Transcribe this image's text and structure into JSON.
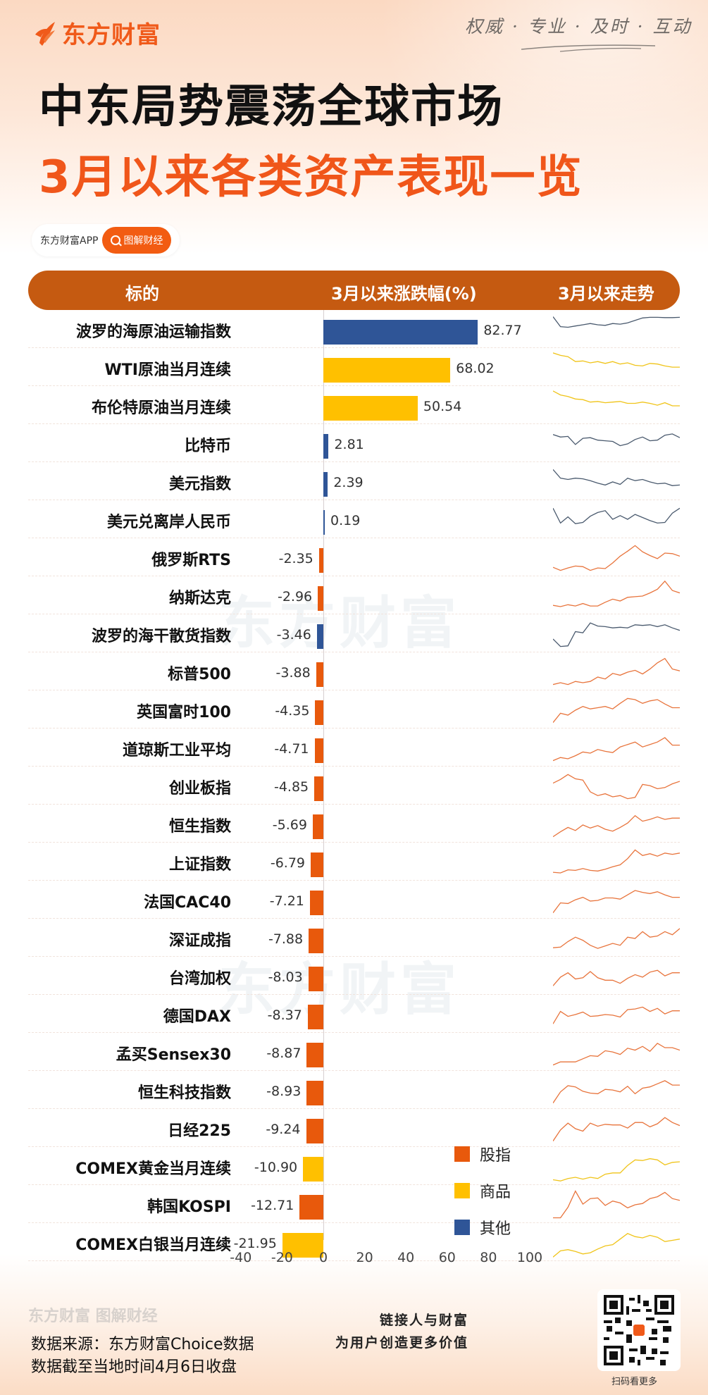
{
  "brand": {
    "logo_text": "东方财富",
    "slogan": "权威 · 专业 · 及时 · 互动"
  },
  "titles": {
    "line1": "中东局势震荡全球市场",
    "line2": "3月以来各类资产表现一览"
  },
  "app_pill": {
    "app_name": "东方财富APP",
    "tag_label": "图解财经"
  },
  "table_header": {
    "col_name": "标的",
    "col_change": "3月以来涨跌幅(%)",
    "col_trend": "3月以来走势"
  },
  "colors": {
    "stock_index": "#E8590C",
    "commodity": "#FFC000",
    "other": "#2F5597",
    "header_bar": "#C55A11",
    "title_accent": "#F0561A"
  },
  "legend": [
    {
      "label": "股指",
      "category": "stock_index"
    },
    {
      "label": "商品",
      "category": "commodity"
    },
    {
      "label": "其他",
      "category": "other"
    }
  ],
  "chart_data": {
    "type": "bar",
    "orientation": "horizontal",
    "title": "3月以来各类资产表现一览",
    "xlabel": "3月以来涨跌幅(%)",
    "ylabel": "标的",
    "xlim": [
      -40,
      100
    ],
    "xticks": [
      "-40",
      "-20",
      "0",
      "20",
      "40",
      "60",
      "80",
      "100"
    ],
    "grid": false,
    "legend_position": "lower right inside",
    "categories": [
      "波罗的海原油运输指数",
      "WTI原油当月连续",
      "布伦特原油当月连续",
      "比特币",
      "美元指数",
      "美元兑离岸人民币",
      "俄罗斯RTS",
      "纳斯达克",
      "波罗的海干散货指数",
      "标普500",
      "英国富时100",
      "道琼斯工业平均",
      "创业板指",
      "恒生指数",
      "上证指数",
      "法国CAC40",
      "深证成指",
      "台湾加权",
      "德国DAX",
      "孟买Sensex30",
      "恒生科技指数",
      "日经225",
      "COMEX黄金当月连续",
      "韩国KOSPI",
      "COMEX白银当月连续"
    ],
    "values": [
      82.77,
      68.02,
      50.54,
      2.81,
      2.39,
      0.19,
      -2.35,
      -2.96,
      -3.46,
      -3.88,
      -4.35,
      -4.71,
      -4.85,
      -5.69,
      -6.79,
      -7.21,
      -7.88,
      -8.03,
      -8.37,
      -8.87,
      -8.93,
      -9.24,
      -10.9,
      -12.71,
      -21.95
    ],
    "value_labels": [
      "82.77",
      "68.02",
      "50.54",
      "2.81",
      "2.39",
      "0.19",
      "-2.35",
      "-2.96",
      "-3.46",
      "-3.88",
      "-4.35",
      "-4.71",
      "-4.85",
      "-5.69",
      "-6.79",
      "-7.21",
      "-7.88",
      "-8.03",
      "-8.37",
      "-8.87",
      "-8.93",
      "-9.24",
      "-10.90",
      "-12.71",
      "-21.95"
    ],
    "asset_class": [
      "other",
      "commodity",
      "commodity",
      "other",
      "other",
      "other",
      "stock_index",
      "stock_index",
      "other",
      "stock_index",
      "stock_index",
      "stock_index",
      "stock_index",
      "stock_index",
      "stock_index",
      "stock_index",
      "stock_index",
      "stock_index",
      "stock_index",
      "stock_index",
      "stock_index",
      "stock_index",
      "commodity",
      "stock_index",
      "commodity"
    ],
    "series": [
      {
        "name": "股指",
        "color": "#E8590C"
      },
      {
        "name": "商品",
        "color": "#FFC000"
      },
      {
        "name": "其他",
        "color": "#2F5597"
      }
    ],
    "sparklines_note": "每行右侧为3月以来走势迷你折线图(无刻度)"
  },
  "sparklines": [
    [
      92,
      60,
      58,
      62,
      66,
      70,
      66,
      64,
      70,
      68,
      72,
      80,
      88,
      90,
      90,
      89,
      89,
      90
    ],
    [
      98,
      90,
      86,
      70,
      72,
      66,
      70,
      64,
      70,
      62,
      66,
      58,
      56,
      64,
      62,
      56,
      52,
      52
    ],
    [
      98,
      85,
      80,
      72,
      70,
      62,
      64,
      60,
      62,
      64,
      58,
      58,
      62,
      58,
      52,
      60,
      50,
      50
    ],
    [
      80,
      72,
      74,
      48,
      68,
      70,
      62,
      60,
      58,
      44,
      50,
      64,
      72,
      60,
      62,
      78,
      82,
      70
    ],
    [
      90,
      62,
      58,
      62,
      60,
      54,
      46,
      40,
      50,
      42,
      62,
      54,
      58,
      50,
      44,
      46,
      38,
      40
    ],
    [
      88,
      40,
      60,
      38,
      42,
      62,
      74,
      80,
      52,
      64,
      52,
      68,
      58,
      48,
      40,
      42,
      72,
      88
    ],
    [
      20,
      10,
      18,
      24,
      22,
      10,
      18,
      16,
      34,
      56,
      72,
      90,
      70,
      58,
      48,
      66,
      64,
      56
    ],
    [
      20,
      16,
      22,
      18,
      26,
      18,
      18,
      30,
      40,
      34,
      46,
      48,
      50,
      60,
      72,
      98,
      68,
      60
    ],
    [
      34,
      10,
      12,
      58,
      54,
      86,
      76,
      74,
      70,
      72,
      70,
      80,
      78,
      80,
      74,
      80,
      70,
      62
    ],
    [
      10,
      16,
      10,
      20,
      16,
      20,
      34,
      28,
      46,
      40,
      50,
      56,
      44,
      60,
      80,
      94,
      60,
      54
    ],
    [
      10,
      40,
      34,
      50,
      62,
      54,
      58,
      62,
      54,
      72,
      88,
      84,
      72,
      80,
      84,
      70,
      58,
      58
    ],
    [
      10,
      20,
      16,
      26,
      38,
      34,
      46,
      40,
      36,
      54,
      62,
      70,
      54,
      62,
      70,
      84,
      60,
      60
    ],
    [
      60,
      72,
      88,
      74,
      70,
      32,
      20,
      26,
      16,
      20,
      10,
      14,
      56,
      52,
      42,
      46,
      58,
      66
    ],
    [
      10,
      26,
      40,
      30,
      48,
      38,
      46,
      34,
      28,
      40,
      54,
      78,
      60,
      66,
      74,
      66,
      70,
      70
    ],
    [
      18,
      16,
      26,
      24,
      30,
      24,
      22,
      28,
      36,
      42,
      62,
      90,
      72,
      78,
      70,
      80,
      76,
      80
    ],
    [
      10,
      42,
      40,
      52,
      60,
      48,
      50,
      58,
      58,
      54,
      68,
      82,
      76,
      72,
      78,
      68,
      60,
      60
    ],
    [
      20,
      22,
      40,
      54,
      44,
      28,
      18,
      26,
      34,
      28,
      54,
      50,
      72,
      54,
      58,
      72,
      62,
      82
    ],
    [
      20,
      48,
      62,
      42,
      46,
      66,
      46,
      38,
      38,
      28,
      44,
      56,
      48,
      64,
      70,
      52,
      62,
      62
    ],
    [
      20,
      60,
      44,
      50,
      58,
      44,
      46,
      50,
      48,
      42,
      66,
      68,
      74,
      60,
      70,
      52,
      62,
      62
    ],
    [
      10,
      20,
      20,
      20,
      30,
      40,
      38,
      56,
      52,
      44,
      64,
      58,
      70,
      54,
      80,
      66,
      66,
      58
    ],
    [
      10,
      46,
      66,
      62,
      48,
      42,
      40,
      54,
      52,
      46,
      64,
      40,
      58,
      62,
      72,
      82,
      68,
      68
    ],
    [
      10,
      46,
      68,
      50,
      42,
      68,
      58,
      64,
      62,
      62,
      52,
      70,
      70,
      56,
      66,
      86,
      70,
      60
    ],
    [
      8,
      4,
      12,
      16,
      10,
      16,
      12,
      26,
      30,
      30,
      54,
      72,
      70,
      76,
      72,
      56,
      64,
      66
    ],
    [
      8,
      8,
      42,
      94,
      52,
      70,
      72,
      48,
      62,
      56,
      40,
      50,
      54,
      70,
      76,
      90,
      70,
      64
    ],
    [
      4,
      24,
      28,
      22,
      14,
      18,
      30,
      40,
      44,
      62,
      80,
      70,
      66,
      74,
      68,
      54,
      58,
      62
    ]
  ],
  "axis": {
    "ticks": [
      "-40",
      "-20",
      "0",
      "20",
      "40",
      "60",
      "80",
      "100"
    ]
  },
  "watermark": {
    "text": "东方财富"
  },
  "footer": {
    "brand": "东方财富 图解财经",
    "source_line1": "数据来源：东方财富Choice数据",
    "source_line2": "数据截至当地时间4月6日收盘",
    "slogan_line1": "链接人与财富",
    "slogan_line2": "为用户创造更多价值",
    "qr_caption": "扫码看更多"
  }
}
